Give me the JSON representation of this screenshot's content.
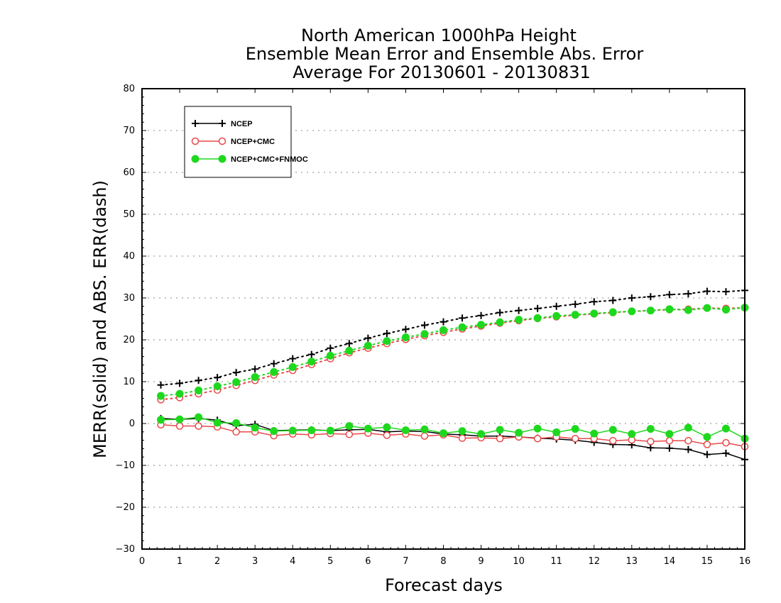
{
  "chart_data": {
    "type": "line",
    "title": [
      "North American 1000hPa Height",
      "Ensemble Mean Error and Ensemble Abs. Error",
      "Average For 20130601 - 20130831"
    ],
    "xlabel": "Forecast days",
    "ylabel": "MERR(solid) and ABS. ERR(dash)",
    "xlim": [
      0,
      16
    ],
    "ylim": [
      -30,
      80
    ],
    "xticks": [
      "0",
      "1",
      "2",
      "3",
      "4",
      "5",
      "6",
      "7",
      "8",
      "9",
      "10",
      "11",
      "12",
      "13",
      "14",
      "15",
      "16"
    ],
    "yticks": [
      "80",
      "70",
      "60",
      "50",
      "40",
      "30",
      "20",
      "10",
      "0",
      "−10",
      "−20",
      "−30"
    ],
    "grid": true,
    "legend": {
      "position": "top-left"
    },
    "x": [
      0.5,
      1,
      1.5,
      2,
      2.5,
      3,
      3.5,
      4,
      4.5,
      5,
      5.5,
      6,
      6.5,
      7,
      7.5,
      8,
      8.5,
      9,
      9.5,
      10,
      10.5,
      11,
      11.5,
      12,
      12.5,
      13,
      13.5,
      14,
      14.5,
      15,
      15.5,
      16
    ],
    "series": [
      {
        "name": "NCEP",
        "color": "#000000",
        "marker": "plus",
        "abs_error": [
          9.2,
          9.6,
          10.3,
          11.0,
          12.2,
          13.0,
          14.3,
          15.5,
          16.5,
          18.0,
          19.1,
          20.4,
          21.5,
          22.5,
          23.5,
          24.3,
          25.2,
          25.8,
          26.5,
          27.0,
          27.5,
          28.0,
          28.5,
          29.1,
          29.4,
          30.0,
          30.3,
          30.8,
          31.0,
          31.6,
          31.5,
          31.8
        ],
        "mean_error": [
          1.2,
          1.0,
          1.2,
          0.8,
          -0.5,
          -0.2,
          -1.7,
          -1.6,
          -1.5,
          -1.7,
          -1.5,
          -1.4,
          -2.0,
          -1.8,
          -1.9,
          -2.5,
          -2.7,
          -3.0,
          -3.0,
          -3.2,
          -3.5,
          -3.7,
          -4.0,
          -4.5,
          -5.0,
          -5.1,
          -5.8,
          -5.9,
          -6.2,
          -7.4,
          -7.1,
          -8.6
        ]
      },
      {
        "name": "NCEP+CMC",
        "color": "#e8484a",
        "marker": "open-circle",
        "abs_error": [
          5.7,
          6.2,
          7.1,
          8.0,
          9.1,
          10.3,
          11.6,
          12.7,
          14.1,
          15.5,
          16.9,
          18.0,
          19.1,
          20.1,
          21.0,
          21.8,
          22.6,
          23.3,
          24.0,
          24.6,
          25.1,
          25.5,
          25.9,
          26.2,
          26.5,
          26.8,
          27.0,
          27.2,
          27.3,
          27.6,
          27.5,
          27.7
        ],
        "mean_error": [
          -0.3,
          -0.6,
          -0.6,
          -0.8,
          -2.0,
          -2.0,
          -2.9,
          -2.5,
          -2.7,
          -2.4,
          -2.6,
          -2.3,
          -2.8,
          -2.5,
          -3.0,
          -2.7,
          -3.5,
          -3.4,
          -3.6,
          -3.2,
          -3.6,
          -3.2,
          -3.6,
          -3.6,
          -4.1,
          -3.9,
          -4.3,
          -4.1,
          -4.1,
          -5.0,
          -4.6,
          -5.5
        ]
      },
      {
        "name": "NCEP+CMC+FNMOC",
        "color": "#1ed81e",
        "marker": "filled-circle",
        "abs_error": [
          6.6,
          7.1,
          7.9,
          8.9,
          9.9,
          11.1,
          12.3,
          13.5,
          14.8,
          16.2,
          17.4,
          18.6,
          19.7,
          20.6,
          21.4,
          22.3,
          23.0,
          23.6,
          24.2,
          24.8,
          25.2,
          25.7,
          26.0,
          26.3,
          26.6,
          26.8,
          27.0,
          27.3,
          27.1,
          27.6,
          27.2,
          27.7
        ],
        "mean_error": [
          0.9,
          1.0,
          1.5,
          0.2,
          0.1,
          -1.0,
          -1.8,
          -1.7,
          -1.6,
          -1.7,
          -0.6,
          -1.2,
          -0.9,
          -1.6,
          -1.4,
          -2.3,
          -1.8,
          -2.5,
          -1.5,
          -2.2,
          -1.2,
          -2.1,
          -1.3,
          -2.4,
          -1.5,
          -2.5,
          -1.3,
          -2.5,
          -1.0,
          -3.2,
          -1.2,
          -3.6
        ]
      }
    ]
  }
}
